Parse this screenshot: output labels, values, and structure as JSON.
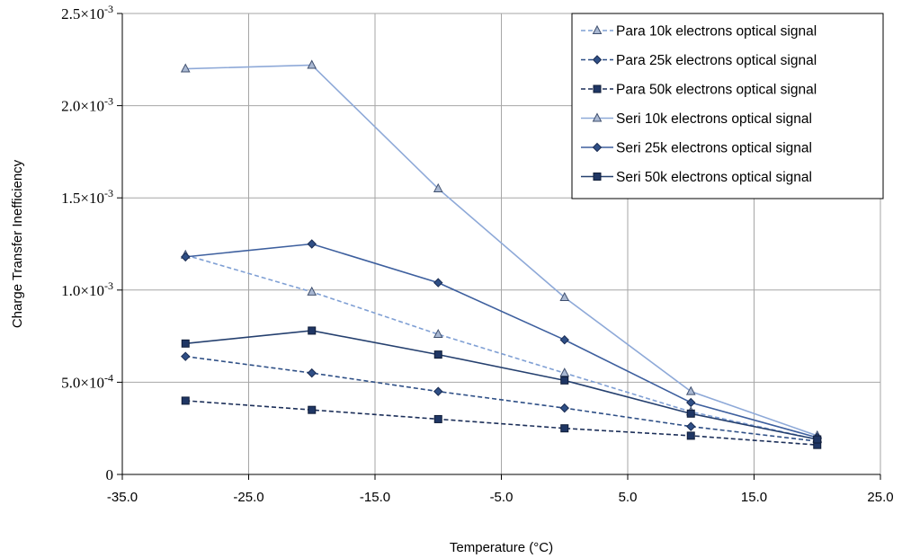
{
  "chart_data": {
    "type": "line",
    "xlabel": "Temperature (°C)",
    "ylabel": "Charge Transfer Inefficiency",
    "xlim": [
      -35,
      25
    ],
    "ylim": [
      0,
      0.0025
    ],
    "grid": true,
    "legend_position": "top-right",
    "x_ticks": [
      {
        "value": -35,
        "label": "-35.0"
      },
      {
        "value": -25,
        "label": "-25.0"
      },
      {
        "value": -15,
        "label": "-15.0"
      },
      {
        "value": -5,
        "label": "-5.0"
      },
      {
        "value": 5,
        "label": "5.0"
      },
      {
        "value": 15,
        "label": "15.0"
      },
      {
        "value": 25,
        "label": "25.0"
      }
    ],
    "y_ticks": [
      {
        "value": 0,
        "mant": "0",
        "exp": ""
      },
      {
        "value": 0.0005,
        "mant": "5.0×10",
        "exp": "-4"
      },
      {
        "value": 0.001,
        "mant": "1.0×10",
        "exp": "-3"
      },
      {
        "value": 0.0015,
        "mant": "1.5×10",
        "exp": "-3"
      },
      {
        "value": 0.002,
        "mant": "2.0×10",
        "exp": "-3"
      },
      {
        "value": 0.0025,
        "mant": "2.5×10",
        "exp": "-3"
      }
    ],
    "series": [
      {
        "name": "Para 10k electrons optical signal",
        "color": "#7f9fd4",
        "dash": true,
        "marker": "triangle",
        "x": [
          -30,
          -20,
          -10,
          0,
          10,
          20
        ],
        "y": [
          0.00119,
          0.00099,
          0.00076,
          0.00055,
          0.00034,
          0.00019
        ]
      },
      {
        "name": "Para 25k electrons optical signal",
        "color": "#2e4f86",
        "dash": true,
        "marker": "diamond",
        "x": [
          -30,
          -20,
          -10,
          0,
          10,
          20
        ],
        "y": [
          0.00064,
          0.00055,
          0.00045,
          0.00036,
          0.00026,
          0.00018
        ]
      },
      {
        "name": "Para 50k electrons optical signal",
        "color": "#1c2f59",
        "dash": true,
        "marker": "square",
        "x": [
          -30,
          -20,
          -10,
          0,
          10,
          20
        ],
        "y": [
          0.0004,
          0.00035,
          0.0003,
          0.00025,
          0.00021,
          0.00016
        ]
      },
      {
        "name": "Seri 10k electrons optical signal",
        "color": "#8ea9d8",
        "dash": false,
        "marker": "triangle",
        "x": [
          -30,
          -20,
          -10,
          0,
          10,
          20
        ],
        "y": [
          0.0022,
          0.00222,
          0.00155,
          0.00096,
          0.00045,
          0.00021
        ]
      },
      {
        "name": "Seri 25k electrons optical signal",
        "color": "#3d5f9e",
        "dash": false,
        "marker": "diamond",
        "x": [
          -30,
          -20,
          -10,
          0,
          10,
          20
        ],
        "y": [
          0.00118,
          0.00125,
          0.00104,
          0.00073,
          0.00039,
          0.0002
        ]
      },
      {
        "name": "Seri 50k electrons optical signal",
        "color": "#25406f",
        "dash": false,
        "marker": "square",
        "x": [
          -30,
          -20,
          -10,
          0,
          10,
          20
        ],
        "y": [
          0.00071,
          0.00078,
          0.00065,
          0.00051,
          0.00033,
          0.00019
        ]
      }
    ]
  }
}
